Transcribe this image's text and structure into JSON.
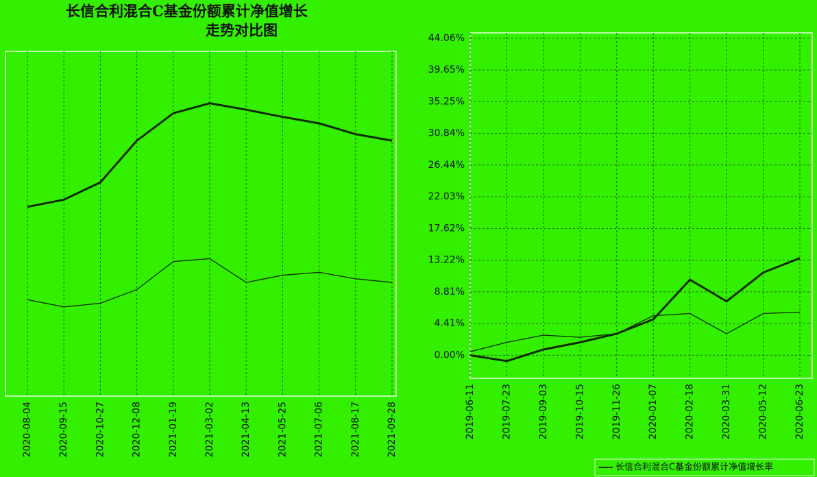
{
  "chart_data": [
    {
      "type": "line",
      "title": "长信合利混合C基金份额累计净值增长",
      "subtitle": "走势对比图",
      "categories": [
        "2020-08-04",
        "2020-09-15",
        "2020-10-27",
        "2020-12-08",
        "2021-01-19",
        "2021-03-02",
        "2021-04-13",
        "2021-05-25",
        "2021-07-06",
        "2021-08-17",
        "2021-09-28"
      ],
      "series": [
        {
          "color": "#0a2a00",
          "values": [
            22.0,
            23.0,
            25.4,
            31.2,
            35.0,
            36.4,
            35.5,
            34.5,
            33.6,
            32.1,
            31.2
          ]
        },
        {
          "color": "#0a2a00",
          "values": [
            9.1,
            8.1,
            8.6,
            10.5,
            14.4,
            14.8,
            11.5,
            12.5,
            12.9,
            12.0,
            11.5
          ]
        }
      ],
      "ylim": [
        -4.3,
        43.6
      ],
      "grid": true
    },
    {
      "type": "line",
      "categories": [
        "2019-06-11",
        "2019-07-23",
        "2019-09-03",
        "2019-10-15",
        "2019-11-26",
        "2020-01-07",
        "2020-02-18",
        "2020-03-31",
        "2020-05-12",
        "2020-06-23"
      ],
      "series": [
        {
          "name": "长信合利混合C基金份额累计净值增长率",
          "color": "#0a2a00",
          "values": [
            0.0,
            -0.8,
            0.8,
            1.8,
            3.0,
            5.0,
            10.5,
            7.5,
            11.5,
            13.5
          ]
        },
        {
          "color": "#0a2a00",
          "values": [
            0.5,
            1.8,
            2.8,
            2.5,
            3.0,
            5.5,
            5.8,
            3.0,
            5.8,
            6.0
          ]
        }
      ],
      "ylim": [
        -3.2,
        44.8
      ],
      "yticks": [
        {
          "value": 0,
          "label": "0.00%"
        },
        {
          "value": 4.41,
          "label": "4.41%"
        },
        {
          "value": 8.81,
          "label": "8.81%"
        },
        {
          "value": 13.22,
          "label": "13.22%"
        },
        {
          "value": 17.62,
          "label": "17.62%"
        },
        {
          "value": 22.03,
          "label": "22.03%"
        },
        {
          "value": 26.44,
          "label": "26.44%"
        },
        {
          "value": 30.84,
          "label": "30.84%"
        },
        {
          "value": 35.25,
          "label": "35.25%"
        },
        {
          "value": 39.65,
          "label": "39.65%"
        },
        {
          "value": 44.06,
          "label": "44.06%"
        }
      ],
      "grid": true
    }
  ]
}
